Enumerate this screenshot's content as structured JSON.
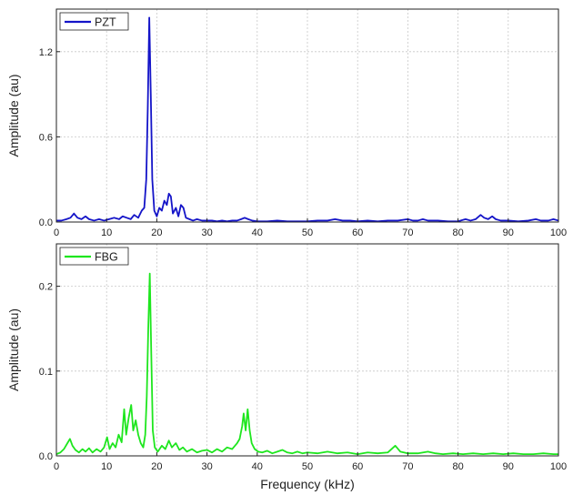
{
  "chart_data": [
    {
      "type": "line",
      "panel": "top",
      "title": "",
      "xlabel": "",
      "ylabel": "Amplitude (au)",
      "xlim": [
        0,
        100
      ],
      "ylim": [
        0,
        1.5
      ],
      "xticks": [
        0,
        10,
        20,
        30,
        40,
        50,
        60,
        70,
        80,
        90,
        100
      ],
      "yticks": [
        0.0,
        0.6,
        1.2
      ],
      "ytick_labels": [
        "0.0",
        "0.6",
        "1.2"
      ],
      "grid": true,
      "legend_position": "top-left",
      "series": [
        {
          "name": "PZT",
          "color": "#1414c8",
          "points": [
            [
              0,
              0.01
            ],
            [
              1,
              0.01
            ],
            [
              2,
              0.02
            ],
            [
              2.8,
              0.03
            ],
            [
              3.5,
              0.06
            ],
            [
              4.2,
              0.03
            ],
            [
              5,
              0.02
            ],
            [
              5.8,
              0.04
            ],
            [
              6.5,
              0.02
            ],
            [
              7.5,
              0.01
            ],
            [
              8.5,
              0.02
            ],
            [
              9.5,
              0.01
            ],
            [
              10.5,
              0.02
            ],
            [
              11.5,
              0.03
            ],
            [
              12.5,
              0.02
            ],
            [
              13.2,
              0.04
            ],
            [
              14,
              0.03
            ],
            [
              14.8,
              0.02
            ],
            [
              15.5,
              0.05
            ],
            [
              16.3,
              0.03
            ],
            [
              17,
              0.08
            ],
            [
              17.5,
              0.1
            ],
            [
              17.9,
              0.3
            ],
            [
              18.2,
              0.8
            ],
            [
              18.5,
              1.44
            ],
            [
              18.8,
              0.9
            ],
            [
              19.1,
              0.3
            ],
            [
              19.5,
              0.08
            ],
            [
              20,
              0.04
            ],
            [
              20.5,
              0.1
            ],
            [
              21,
              0.08
            ],
            [
              21.5,
              0.15
            ],
            [
              22,
              0.12
            ],
            [
              22.4,
              0.2
            ],
            [
              22.8,
              0.18
            ],
            [
              23.2,
              0.06
            ],
            [
              23.8,
              0.1
            ],
            [
              24.3,
              0.04
            ],
            [
              24.8,
              0.12
            ],
            [
              25.3,
              0.1
            ],
            [
              25.8,
              0.03
            ],
            [
              26.5,
              0.02
            ],
            [
              27.2,
              0.01
            ],
            [
              28,
              0.02
            ],
            [
              29,
              0.01
            ],
            [
              30,
              0.01
            ],
            [
              31,
              0.01
            ],
            [
              32,
              0.005
            ],
            [
              33,
              0.01
            ],
            [
              34,
              0.005
            ],
            [
              35,
              0.01
            ],
            [
              36,
              0.01
            ],
            [
              36.8,
              0.02
            ],
            [
              37.5,
              0.03
            ],
            [
              38.2,
              0.02
            ],
            [
              39,
              0.01
            ],
            [
              40,
              0.005
            ],
            [
              42,
              0.005
            ],
            [
              44,
              0.01
            ],
            [
              46,
              0.005
            ],
            [
              48,
              0.005
            ],
            [
              50,
              0.005
            ],
            [
              52,
              0.01
            ],
            [
              54,
              0.01
            ],
            [
              55.5,
              0.02
            ],
            [
              57,
              0.01
            ],
            [
              58.5,
              0.01
            ],
            [
              60,
              0.005
            ],
            [
              62,
              0.01
            ],
            [
              64,
              0.005
            ],
            [
              66,
              0.01
            ],
            [
              68,
              0.01
            ],
            [
              70,
              0.02
            ],
            [
              71,
              0.01
            ],
            [
              72,
              0.01
            ],
            [
              73,
              0.02
            ],
            [
              74,
              0.01
            ],
            [
              76,
              0.01
            ],
            [
              78,
              0.005
            ],
            [
              80,
              0.005
            ],
            [
              81.5,
              0.02
            ],
            [
              82.5,
              0.01
            ],
            [
              83.5,
              0.02
            ],
            [
              84.5,
              0.05
            ],
            [
              85.2,
              0.03
            ],
            [
              86,
              0.02
            ],
            [
              86.8,
              0.04
            ],
            [
              87.5,
              0.02
            ],
            [
              88.5,
              0.01
            ],
            [
              90,
              0.01
            ],
            [
              92,
              0.005
            ],
            [
              94,
              0.01
            ],
            [
              95.5,
              0.02
            ],
            [
              96.5,
              0.01
            ],
            [
              98,
              0.01
            ],
            [
              99,
              0.02
            ],
            [
              100,
              0.01
            ]
          ]
        }
      ]
    },
    {
      "type": "line",
      "panel": "bottom",
      "title": "",
      "xlabel": "Frequency (kHz)",
      "ylabel": "Amplitude (au)",
      "xlim": [
        0,
        100
      ],
      "ylim": [
        0,
        0.25
      ],
      "xticks": [
        0,
        10,
        20,
        30,
        40,
        50,
        60,
        70,
        80,
        90,
        100
      ],
      "yticks": [
        0.0,
        0.1,
        0.2
      ],
      "ytick_labels": [
        "0.0",
        "0.1",
        "0.2"
      ],
      "grid": true,
      "legend_position": "top-left",
      "series": [
        {
          "name": "FBG",
          "color": "#1ee61e",
          "points": [
            [
              0,
              0.002
            ],
            [
              0.8,
              0.004
            ],
            [
              1.5,
              0.008
            ],
            [
              2.2,
              0.015
            ],
            [
              2.7,
              0.02
            ],
            [
              3.2,
              0.012
            ],
            [
              3.8,
              0.007
            ],
            [
              4.5,
              0.004
            ],
            [
              5.2,
              0.008
            ],
            [
              5.8,
              0.005
            ],
            [
              6.5,
              0.009
            ],
            [
              7.2,
              0.004
            ],
            [
              8,
              0.008
            ],
            [
              8.8,
              0.005
            ],
            [
              9.5,
              0.01
            ],
            [
              10.1,
              0.022
            ],
            [
              10.6,
              0.008
            ],
            [
              11.2,
              0.015
            ],
            [
              11.8,
              0.01
            ],
            [
              12.4,
              0.025
            ],
            [
              13,
              0.016
            ],
            [
              13.5,
              0.055
            ],
            [
              13.9,
              0.025
            ],
            [
              14.4,
              0.045
            ],
            [
              14.9,
              0.06
            ],
            [
              15.3,
              0.03
            ],
            [
              15.8,
              0.042
            ],
            [
              16.3,
              0.025
            ],
            [
              16.8,
              0.015
            ],
            [
              17.3,
              0.01
            ],
            [
              17.7,
              0.025
            ],
            [
              18,
              0.07
            ],
            [
              18.3,
              0.15
            ],
            [
              18.6,
              0.215
            ],
            [
              18.9,
              0.12
            ],
            [
              19.2,
              0.03
            ],
            [
              19.6,
              0.01
            ],
            [
              20.2,
              0.005
            ],
            [
              21,
              0.012
            ],
            [
              21.7,
              0.008
            ],
            [
              22.4,
              0.018
            ],
            [
              23,
              0.01
            ],
            [
              23.8,
              0.015
            ],
            [
              24.5,
              0.007
            ],
            [
              25.2,
              0.01
            ],
            [
              26,
              0.005
            ],
            [
              27,
              0.008
            ],
            [
              28,
              0.004
            ],
            [
              29,
              0.006
            ],
            [
              30,
              0.007
            ],
            [
              31,
              0.004
            ],
            [
              32,
              0.008
            ],
            [
              33,
              0.005
            ],
            [
              34,
              0.01
            ],
            [
              35,
              0.008
            ],
            [
              36,
              0.015
            ],
            [
              36.5,
              0.02
            ],
            [
              37,
              0.035
            ],
            [
              37.3,
              0.05
            ],
            [
              37.7,
              0.03
            ],
            [
              38.1,
              0.055
            ],
            [
              38.5,
              0.03
            ],
            [
              38.9,
              0.015
            ],
            [
              39.5,
              0.008
            ],
            [
              40.2,
              0.005
            ],
            [
              41,
              0.004
            ],
            [
              42,
              0.006
            ],
            [
              43,
              0.003
            ],
            [
              44,
              0.005
            ],
            [
              45,
              0.007
            ],
            [
              46,
              0.004
            ],
            [
              47,
              0.003
            ],
            [
              48,
              0.005
            ],
            [
              49,
              0.003
            ],
            [
              50,
              0.004
            ],
            [
              52,
              0.003
            ],
            [
              54,
              0.005
            ],
            [
              56,
              0.003
            ],
            [
              58,
              0.004
            ],
            [
              60,
              0.002
            ],
            [
              62,
              0.004
            ],
            [
              64,
              0.003
            ],
            [
              66,
              0.004
            ],
            [
              67.5,
              0.012
            ],
            [
              68.5,
              0.005
            ],
            [
              70,
              0.003
            ],
            [
              72,
              0.003
            ],
            [
              74,
              0.005
            ],
            [
              75.5,
              0.003
            ],
            [
              77,
              0.002
            ],
            [
              79,
              0.003
            ],
            [
              81,
              0.002
            ],
            [
              83,
              0.003
            ],
            [
              85,
              0.002
            ],
            [
              87,
              0.003
            ],
            [
              89,
              0.002
            ],
            [
              91,
              0.003
            ],
            [
              93,
              0.002
            ],
            [
              95,
              0.002
            ],
            [
              97,
              0.003
            ],
            [
              99,
              0.002
            ],
            [
              100,
              0.002
            ]
          ]
        }
      ]
    }
  ]
}
